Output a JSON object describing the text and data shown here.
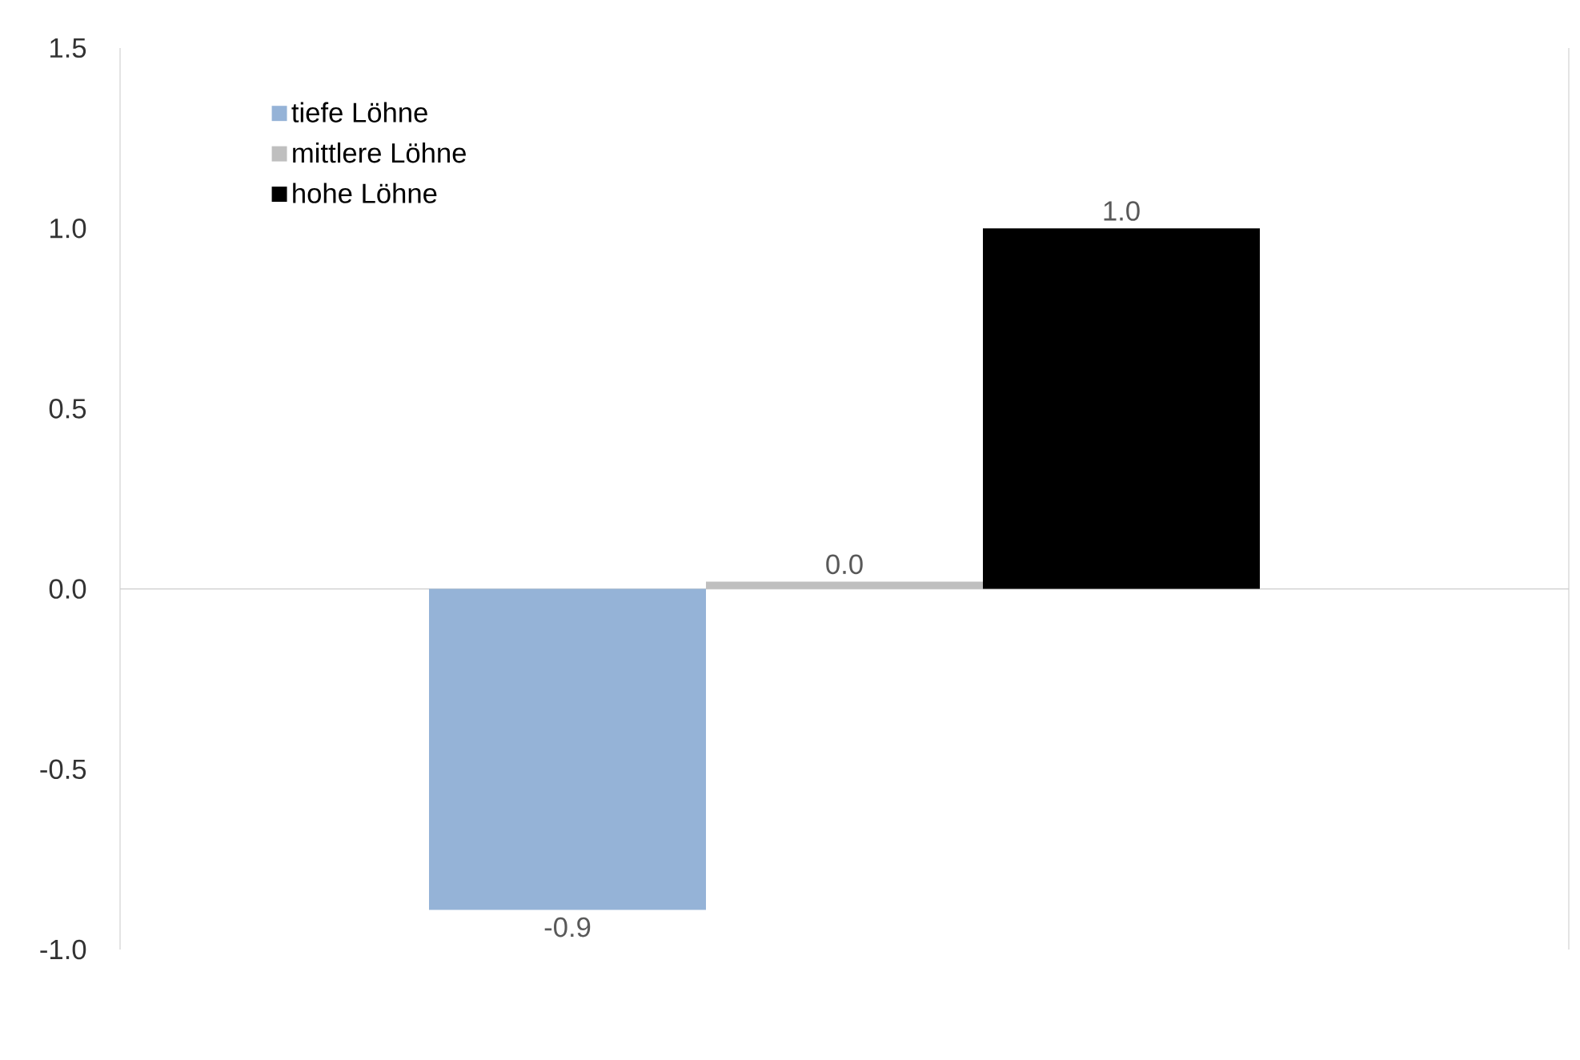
{
  "chart_data": {
    "type": "bar",
    "categories": [
      null
    ],
    "series": [
      {
        "name": "tiefe Löhne",
        "color": "#95b3d7",
        "values": [
          -0.89
        ],
        "value_labels": [
          "-0.9"
        ]
      },
      {
        "name": "mittlere Löhne",
        "color": "#bfbfbf",
        "values": [
          0.02
        ],
        "value_labels": [
          "0.0"
        ]
      },
      {
        "name": "hohe Löhne",
        "color": "#000000",
        "values": [
          1.0
        ],
        "value_labels": [
          "1.0"
        ]
      }
    ],
    "ylim": [
      -1.0,
      1.5
    ],
    "yticks": [
      {
        "value": -1.0,
        "label": "-1.0"
      },
      {
        "value": -0.5,
        "label": "-0.5"
      },
      {
        "value": 0.0,
        "label": "0.0"
      },
      {
        "value": 0.5,
        "label": "0.5"
      },
      {
        "value": 1.0,
        "label": "1.0"
      },
      {
        "value": 1.5,
        "label": "1.5"
      }
    ],
    "legend": "top left"
  }
}
